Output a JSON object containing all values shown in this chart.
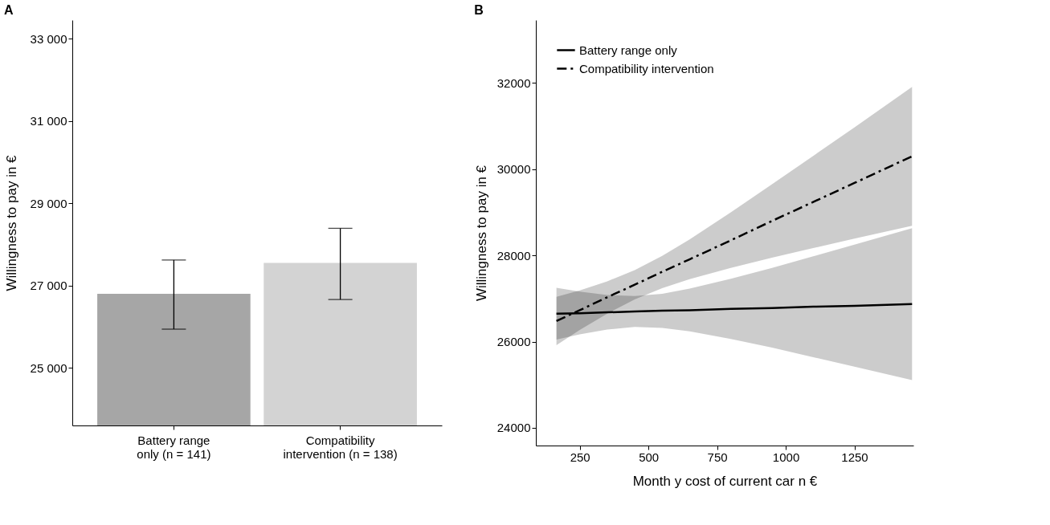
{
  "chart_data": [
    {
      "type": "bar",
      "title": "A",
      "ylabel": "Willingness to pay in €",
      "categories": [
        "Battery range\nonly (n = 141)",
        "Compatibility\nintervention (n = 138)"
      ],
      "values": [
        26800,
        27550
      ],
      "colors": [
        "#a6a6a6",
        "#d3d3d3"
      ],
      "errors": [
        [
          25940,
          27620
        ],
        [
          26660,
          28390
        ]
      ],
      "ylim": [
        23600,
        33450
      ],
      "yticks": [
        {
          "value": 25000,
          "label": "25 000"
        },
        {
          "value": 27000,
          "label": "27 000"
        },
        {
          "value": 29000,
          "label": "29 000"
        },
        {
          "value": 31000,
          "label": "31 000"
        },
        {
          "value": 33000,
          "label": "33 000"
        }
      ],
      "grid": false
    },
    {
      "type": "line",
      "title": "B",
      "xlabel": "Month y cost of current car  n €",
      "ylabel": "Willingness to pay in €",
      "series": [
        {
          "name": "Battery range only",
          "color": "#000000",
          "line_style": "solid",
          "x": [
            165,
            250,
            350,
            450,
            550,
            650,
            800,
            950,
            1100,
            1250,
            1460
          ],
          "values": [
            26650,
            26660,
            26680,
            26700,
            26720,
            26730,
            26760,
            26780,
            26810,
            26830,
            26870
          ],
          "lower": [
            26050,
            26170,
            26280,
            26340,
            26320,
            26240,
            26060,
            25860,
            25640,
            25420,
            25110
          ],
          "upper": [
            27250,
            27160,
            27080,
            27060,
            27110,
            27230,
            27460,
            27710,
            27980,
            28250,
            28630
          ]
        },
        {
          "name": "Compatibility intervention",
          "color": "#000000",
          "line_style": "dashed",
          "x": [
            165,
            250,
            350,
            450,
            550,
            650,
            800,
            950,
            1100,
            1250,
            1460
          ],
          "values": [
            26480,
            26730,
            27030,
            27320,
            27620,
            27910,
            28350,
            28800,
            29240,
            29680,
            30300
          ],
          "lower": [
            25920,
            26270,
            26650,
            26980,
            27240,
            27450,
            27710,
            27950,
            28170,
            28390,
            28690
          ],
          "upper": [
            27040,
            27190,
            27400,
            27660,
            27990,
            28370,
            29000,
            29650,
            30310,
            30970,
            31910
          ]
        }
      ],
      "xlim": [
        90,
        1465
      ],
      "xticks": [
        250,
        500,
        750,
        1000,
        1250
      ],
      "ylim": [
        23590,
        33460
      ],
      "yticks": [
        24000,
        26000,
        28000,
        30000,
        32000
      ],
      "legend": "top left",
      "grid": false
    }
  ]
}
